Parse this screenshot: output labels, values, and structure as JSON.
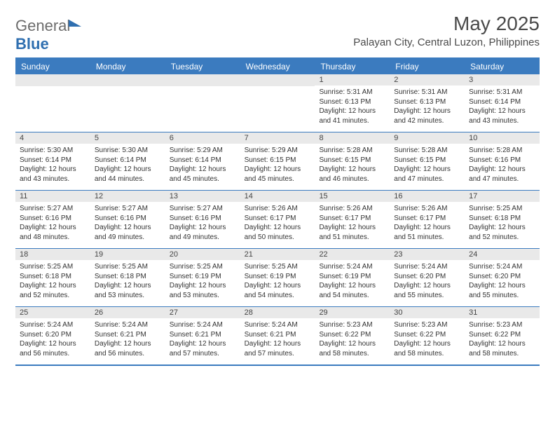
{
  "logo": {
    "text1": "General",
    "text2": "Blue"
  },
  "title": "May 2025",
  "location": "Palayan City, Central Luzon, Philippines",
  "colors": {
    "header_bg": "#3b7bbf",
    "header_text": "#ffffff",
    "daynum_bg": "#e9e9e9",
    "border": "#3b7bbf",
    "title_color": "#4a4a4a"
  },
  "typography": {
    "title_fontsize": 28,
    "location_fontsize": 15,
    "dow_fontsize": 12,
    "daynum_fontsize": 11,
    "cell_fontsize": 10
  },
  "days_of_week": [
    "Sunday",
    "Monday",
    "Tuesday",
    "Wednesday",
    "Thursday",
    "Friday",
    "Saturday"
  ],
  "weeks": [
    [
      {
        "n": "",
        "sr": "",
        "ss": "",
        "dl": ""
      },
      {
        "n": "",
        "sr": "",
        "ss": "",
        "dl": ""
      },
      {
        "n": "",
        "sr": "",
        "ss": "",
        "dl": ""
      },
      {
        "n": "",
        "sr": "",
        "ss": "",
        "dl": ""
      },
      {
        "n": "1",
        "sr": "Sunrise: 5:31 AM",
        "ss": "Sunset: 6:13 PM",
        "dl": "Daylight: 12 hours and 41 minutes."
      },
      {
        "n": "2",
        "sr": "Sunrise: 5:31 AM",
        "ss": "Sunset: 6:13 PM",
        "dl": "Daylight: 12 hours and 42 minutes."
      },
      {
        "n": "3",
        "sr": "Sunrise: 5:31 AM",
        "ss": "Sunset: 6:14 PM",
        "dl": "Daylight: 12 hours and 43 minutes."
      }
    ],
    [
      {
        "n": "4",
        "sr": "Sunrise: 5:30 AM",
        "ss": "Sunset: 6:14 PM",
        "dl": "Daylight: 12 hours and 43 minutes."
      },
      {
        "n": "5",
        "sr": "Sunrise: 5:30 AM",
        "ss": "Sunset: 6:14 PM",
        "dl": "Daylight: 12 hours and 44 minutes."
      },
      {
        "n": "6",
        "sr": "Sunrise: 5:29 AM",
        "ss": "Sunset: 6:14 PM",
        "dl": "Daylight: 12 hours and 45 minutes."
      },
      {
        "n": "7",
        "sr": "Sunrise: 5:29 AM",
        "ss": "Sunset: 6:15 PM",
        "dl": "Daylight: 12 hours and 45 minutes."
      },
      {
        "n": "8",
        "sr": "Sunrise: 5:28 AM",
        "ss": "Sunset: 6:15 PM",
        "dl": "Daylight: 12 hours and 46 minutes."
      },
      {
        "n": "9",
        "sr": "Sunrise: 5:28 AM",
        "ss": "Sunset: 6:15 PM",
        "dl": "Daylight: 12 hours and 47 minutes."
      },
      {
        "n": "10",
        "sr": "Sunrise: 5:28 AM",
        "ss": "Sunset: 6:16 PM",
        "dl": "Daylight: 12 hours and 47 minutes."
      }
    ],
    [
      {
        "n": "11",
        "sr": "Sunrise: 5:27 AM",
        "ss": "Sunset: 6:16 PM",
        "dl": "Daylight: 12 hours and 48 minutes."
      },
      {
        "n": "12",
        "sr": "Sunrise: 5:27 AM",
        "ss": "Sunset: 6:16 PM",
        "dl": "Daylight: 12 hours and 49 minutes."
      },
      {
        "n": "13",
        "sr": "Sunrise: 5:27 AM",
        "ss": "Sunset: 6:16 PM",
        "dl": "Daylight: 12 hours and 49 minutes."
      },
      {
        "n": "14",
        "sr": "Sunrise: 5:26 AM",
        "ss": "Sunset: 6:17 PM",
        "dl": "Daylight: 12 hours and 50 minutes."
      },
      {
        "n": "15",
        "sr": "Sunrise: 5:26 AM",
        "ss": "Sunset: 6:17 PM",
        "dl": "Daylight: 12 hours and 51 minutes."
      },
      {
        "n": "16",
        "sr": "Sunrise: 5:26 AM",
        "ss": "Sunset: 6:17 PM",
        "dl": "Daylight: 12 hours and 51 minutes."
      },
      {
        "n": "17",
        "sr": "Sunrise: 5:25 AM",
        "ss": "Sunset: 6:18 PM",
        "dl": "Daylight: 12 hours and 52 minutes."
      }
    ],
    [
      {
        "n": "18",
        "sr": "Sunrise: 5:25 AM",
        "ss": "Sunset: 6:18 PM",
        "dl": "Daylight: 12 hours and 52 minutes."
      },
      {
        "n": "19",
        "sr": "Sunrise: 5:25 AM",
        "ss": "Sunset: 6:18 PM",
        "dl": "Daylight: 12 hours and 53 minutes."
      },
      {
        "n": "20",
        "sr": "Sunrise: 5:25 AM",
        "ss": "Sunset: 6:19 PM",
        "dl": "Daylight: 12 hours and 53 minutes."
      },
      {
        "n": "21",
        "sr": "Sunrise: 5:25 AM",
        "ss": "Sunset: 6:19 PM",
        "dl": "Daylight: 12 hours and 54 minutes."
      },
      {
        "n": "22",
        "sr": "Sunrise: 5:24 AM",
        "ss": "Sunset: 6:19 PM",
        "dl": "Daylight: 12 hours and 54 minutes."
      },
      {
        "n": "23",
        "sr": "Sunrise: 5:24 AM",
        "ss": "Sunset: 6:20 PM",
        "dl": "Daylight: 12 hours and 55 minutes."
      },
      {
        "n": "24",
        "sr": "Sunrise: 5:24 AM",
        "ss": "Sunset: 6:20 PM",
        "dl": "Daylight: 12 hours and 55 minutes."
      }
    ],
    [
      {
        "n": "25",
        "sr": "Sunrise: 5:24 AM",
        "ss": "Sunset: 6:20 PM",
        "dl": "Daylight: 12 hours and 56 minutes."
      },
      {
        "n": "26",
        "sr": "Sunrise: 5:24 AM",
        "ss": "Sunset: 6:21 PM",
        "dl": "Daylight: 12 hours and 56 minutes."
      },
      {
        "n": "27",
        "sr": "Sunrise: 5:24 AM",
        "ss": "Sunset: 6:21 PM",
        "dl": "Daylight: 12 hours and 57 minutes."
      },
      {
        "n": "28",
        "sr": "Sunrise: 5:24 AM",
        "ss": "Sunset: 6:21 PM",
        "dl": "Daylight: 12 hours and 57 minutes."
      },
      {
        "n": "29",
        "sr": "Sunrise: 5:23 AM",
        "ss": "Sunset: 6:22 PM",
        "dl": "Daylight: 12 hours and 58 minutes."
      },
      {
        "n": "30",
        "sr": "Sunrise: 5:23 AM",
        "ss": "Sunset: 6:22 PM",
        "dl": "Daylight: 12 hours and 58 minutes."
      },
      {
        "n": "31",
        "sr": "Sunrise: 5:23 AM",
        "ss": "Sunset: 6:22 PM",
        "dl": "Daylight: 12 hours and 58 minutes."
      }
    ]
  ]
}
